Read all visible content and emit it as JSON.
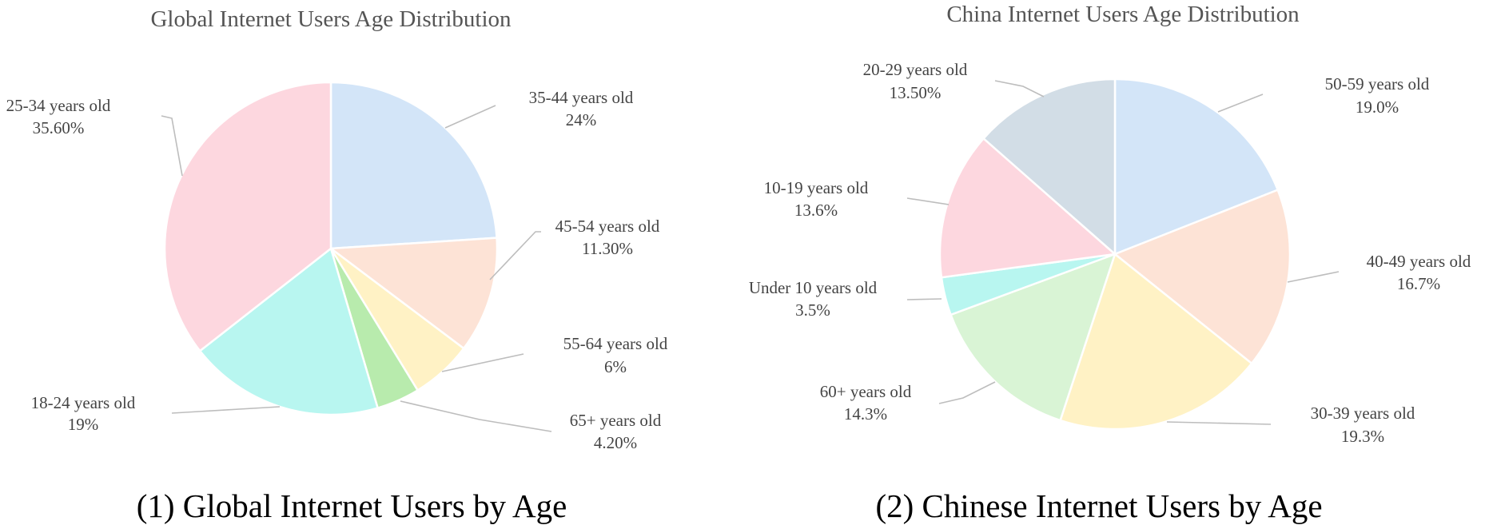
{
  "chart_data": [
    {
      "type": "pie",
      "title": "Global Internet Users Age Distribution",
      "caption": "(1) Global Internet Users by Age",
      "slices": [
        {
          "name": "35-44 years old",
          "value": 24,
          "value_label": "24%",
          "color": "#d3e5f8"
        },
        {
          "name": "45-54 years old",
          "value": 11.3,
          "value_label": "11.30%",
          "color": "#fde3d6"
        },
        {
          "name": "55-64 years old",
          "value": 6,
          "value_label": "6%",
          "color": "#fff2c5"
        },
        {
          "name": "65+ years old",
          "value": 4.2,
          "value_label": "4.20%",
          "color": "#b8ebad"
        },
        {
          "name": "18-24 years old",
          "value": 19,
          "value_label": "19%",
          "color": "#b8f6f0"
        },
        {
          "name": "25-34 years old",
          "value": 35.6,
          "value_label": "35.60%",
          "color": "#fdd7df"
        }
      ]
    },
    {
      "type": "pie",
      "title": "China Internet Users Age Distribution",
      "caption": "(2) Chinese Internet Users by Age",
      "slices": [
        {
          "name": "50-59 years old",
          "value": 19.0,
          "value_label": "19.0%",
          "color": "#d3e5f8"
        },
        {
          "name": "40-49 years old",
          "value": 16.7,
          "value_label": "16.7%",
          "color": "#fde3d6"
        },
        {
          "name": "30-39 years old",
          "value": 19.3,
          "value_label": "19.3%",
          "color": "#fff2c5"
        },
        {
          "name": "60+ years old",
          "value": 14.3,
          "value_label": "14.3%",
          "color": "#d9f4d5"
        },
        {
          "name": "Under 10 years old",
          "value": 3.5,
          "value_label": "3.5%",
          "color": "#b8f6f0"
        },
        {
          "name": "10-19 years old",
          "value": 13.6,
          "value_label": "13.6%",
          "color": "#fdd7df"
        },
        {
          "name": "20-29 years old",
          "value": 13.5,
          "value_label": "13.50%",
          "color": "#d2dde6"
        }
      ]
    }
  ]
}
